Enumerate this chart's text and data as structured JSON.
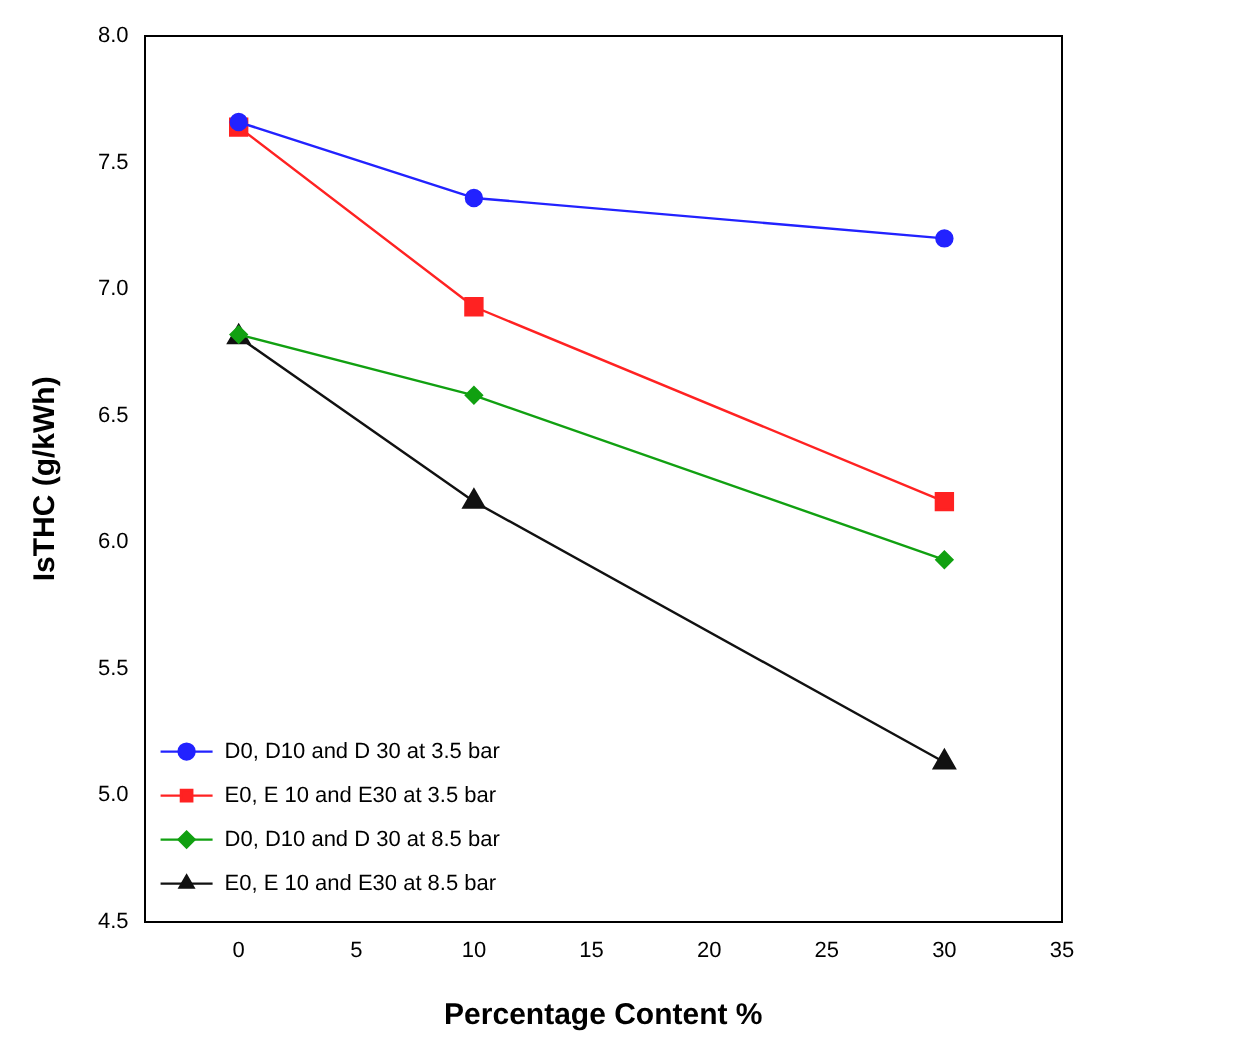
{
  "chart_data": {
    "type": "line",
    "xlabel": "Percentage Content %",
    "ylabel": "IsTHC (g/kWh)",
    "xlim": [
      -4,
      35
    ],
    "xticks": [
      0,
      5,
      10,
      15,
      20,
      25,
      30,
      35
    ],
    "ylim": [
      4.5,
      8.0
    ],
    "yticks": [
      {
        "value": 4.5,
        "label": "4.5"
      },
      {
        "value": 5,
        "label": "5.0"
      },
      {
        "value": 5.5,
        "label": "5.5"
      },
      {
        "value": 6,
        "label": "6.0"
      },
      {
        "value": 6.5,
        "label": "6.5"
      },
      {
        "value": 7,
        "label": "7.0"
      },
      {
        "value": 7.5,
        "label": "7.5"
      },
      {
        "value": 8,
        "label": "8.0"
      }
    ],
    "x": [
      0,
      10,
      30
    ],
    "grid": false,
    "legend": "bottom left",
    "line_style": "solid",
    "series": [
      {
        "name": "D0, D10 and D 30 at 3.5 bar",
        "color": "#2222ff",
        "marker": "circle",
        "values": [
          7.66,
          7.36,
          7.2
        ]
      },
      {
        "name": "E0, E 10 and E30 at 3.5 bar",
        "color": "#ff2222",
        "marker": "square",
        "values": [
          7.64,
          6.93,
          6.16
        ]
      },
      {
        "name": "D0, D10 and D 30 at 8.5 bar",
        "color": "#11a011",
        "marker": "diamond",
        "values": [
          6.82,
          6.58,
          5.93
        ]
      },
      {
        "name": "E0, E 10 and E30 at 8.5 bar",
        "color": "#111111",
        "marker": "triangle",
        "values": [
          6.81,
          6.16,
          5.13
        ]
      }
    ]
  }
}
